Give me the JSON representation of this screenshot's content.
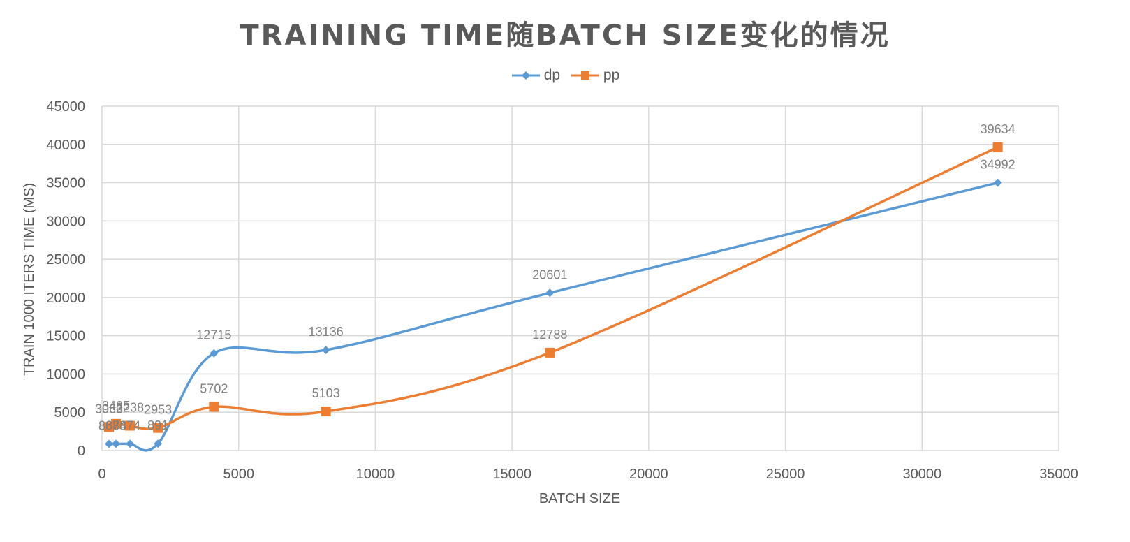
{
  "chart_data": {
    "type": "line",
    "title": "TRAINING TIME随BATCH SIZE变化的情况",
    "xlabel": "BATCH SIZE",
    "ylabel": "TRAIN 1000 ITERS TIME (MS)",
    "xlim": [
      0,
      35000
    ],
    "ylim": [
      0,
      45000
    ],
    "x_ticks": [
      "0",
      "5000",
      "10000",
      "15000",
      "20000",
      "25000",
      "30000",
      "35000"
    ],
    "y_ticks": [
      "0",
      "5000",
      "10000",
      "15000",
      "20000",
      "25000",
      "30000",
      "35000",
      "40000",
      "45000"
    ],
    "grid": true,
    "legend_position": "top",
    "series": [
      {
        "name": "dp",
        "color": "#5B9BD5",
        "marker": "diamond",
        "points": [
          {
            "x": 256,
            "y": 868,
            "label": "868"
          },
          {
            "x": 512,
            "y": 874,
            "label": "874"
          },
          {
            "x": 1024,
            "y": 874,
            "label": "874"
          },
          {
            "x": 2048,
            "y": 891,
            "label": "891"
          },
          {
            "x": 4096,
            "y": 12715,
            "label": "12715"
          },
          {
            "x": 8192,
            "y": 13136,
            "label": "13136"
          },
          {
            "x": 16384,
            "y": 20601,
            "label": "20601"
          },
          {
            "x": 32768,
            "y": 34992,
            "label": "34992"
          }
        ]
      },
      {
        "name": "pp",
        "color": "#ED7D31",
        "marker": "square",
        "points": [
          {
            "x": 256,
            "y": 3063,
            "label": "3063"
          },
          {
            "x": 512,
            "y": 3485,
            "label": "3485"
          },
          {
            "x": 1024,
            "y": 3238,
            "label": "3238"
          },
          {
            "x": 2048,
            "y": 2953,
            "label": "2953"
          },
          {
            "x": 4096,
            "y": 5702,
            "label": "5702"
          },
          {
            "x": 8192,
            "y": 5103,
            "label": "5103"
          },
          {
            "x": 16384,
            "y": 12788,
            "label": "12788"
          },
          {
            "x": 32768,
            "y": 39634,
            "label": "39634"
          }
        ]
      }
    ]
  }
}
